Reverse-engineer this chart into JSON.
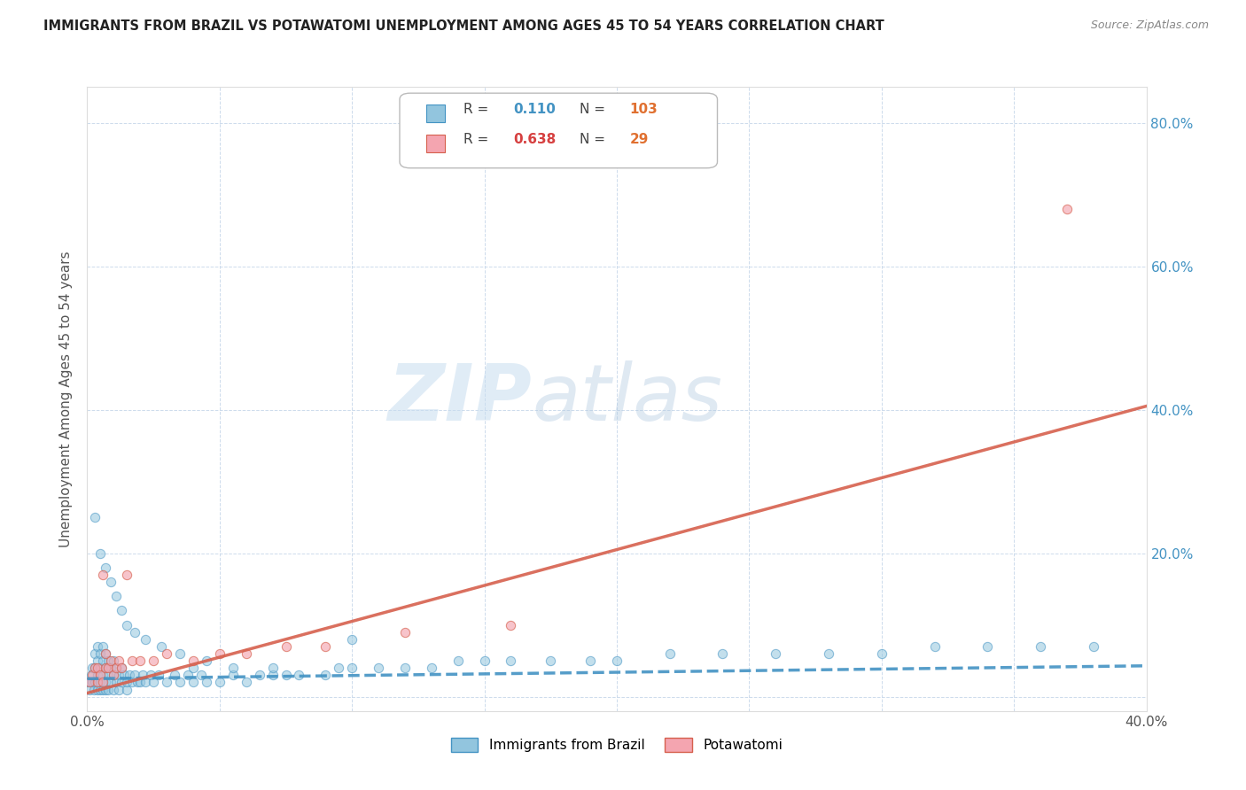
{
  "title": "IMMIGRANTS FROM BRAZIL VS POTAWATOMI UNEMPLOYMENT AMONG AGES 45 TO 54 YEARS CORRELATION CHART",
  "source": "Source: ZipAtlas.com",
  "ylabel": "Unemployment Among Ages 45 to 54 years",
  "xlim": [
    0.0,
    0.4
  ],
  "ylim": [
    -0.02,
    0.85
  ],
  "xticks": [
    0.0,
    0.05,
    0.1,
    0.15,
    0.2,
    0.25,
    0.3,
    0.35,
    0.4
  ],
  "yticks": [
    0.0,
    0.2,
    0.4,
    0.6,
    0.8
  ],
  "xtick_labels": [
    "0.0%",
    "",
    "",
    "",
    "",
    "",
    "",
    "",
    "40.0%"
  ],
  "ytick_labels_right": [
    "",
    "20.0%",
    "40.0%",
    "60.0%",
    "80.0%"
  ],
  "brazil_R": 0.11,
  "brazil_N": 103,
  "potawatomi_R": 0.638,
  "potawatomi_N": 29,
  "brazil_color": "#92c5de",
  "potawatomi_color": "#f4a5b0",
  "brazil_line_color": "#4393c3",
  "potawatomi_line_color": "#d6604d",
  "watermark_zip": "ZIP",
  "watermark_atlas": "atlas",
  "brazil_scatter_x": [
    0.0005,
    0.001,
    0.0015,
    0.002,
    0.002,
    0.0025,
    0.003,
    0.003,
    0.003,
    0.004,
    0.004,
    0.004,
    0.004,
    0.005,
    0.005,
    0.005,
    0.005,
    0.006,
    0.006,
    0.006,
    0.006,
    0.007,
    0.007,
    0.007,
    0.007,
    0.008,
    0.008,
    0.008,
    0.009,
    0.009,
    0.01,
    0.01,
    0.01,
    0.011,
    0.011,
    0.012,
    0.012,
    0.013,
    0.013,
    0.014,
    0.015,
    0.015,
    0.016,
    0.017,
    0.018,
    0.019,
    0.02,
    0.021,
    0.022,
    0.024,
    0.025,
    0.027,
    0.03,
    0.033,
    0.035,
    0.038,
    0.04,
    0.043,
    0.045,
    0.05,
    0.055,
    0.06,
    0.065,
    0.07,
    0.075,
    0.08,
    0.09,
    0.095,
    0.1,
    0.11,
    0.12,
    0.13,
    0.14,
    0.15,
    0.16,
    0.175,
    0.19,
    0.2,
    0.22,
    0.24,
    0.26,
    0.28,
    0.3,
    0.32,
    0.34,
    0.36,
    0.38,
    0.003,
    0.005,
    0.007,
    0.009,
    0.011,
    0.013,
    0.015,
    0.018,
    0.022,
    0.028,
    0.035,
    0.045,
    0.055,
    0.04,
    0.07,
    0.1
  ],
  "brazil_scatter_y": [
    0.02,
    0.01,
    0.03,
    0.02,
    0.04,
    0.01,
    0.02,
    0.04,
    0.06,
    0.01,
    0.03,
    0.05,
    0.07,
    0.01,
    0.02,
    0.04,
    0.06,
    0.01,
    0.03,
    0.05,
    0.07,
    0.01,
    0.02,
    0.04,
    0.06,
    0.01,
    0.03,
    0.05,
    0.02,
    0.04,
    0.01,
    0.03,
    0.05,
    0.02,
    0.04,
    0.01,
    0.03,
    0.02,
    0.04,
    0.03,
    0.01,
    0.02,
    0.03,
    0.02,
    0.03,
    0.02,
    0.02,
    0.03,
    0.02,
    0.03,
    0.02,
    0.03,
    0.02,
    0.03,
    0.02,
    0.03,
    0.02,
    0.03,
    0.02,
    0.02,
    0.03,
    0.02,
    0.03,
    0.03,
    0.03,
    0.03,
    0.03,
    0.04,
    0.04,
    0.04,
    0.04,
    0.04,
    0.05,
    0.05,
    0.05,
    0.05,
    0.05,
    0.05,
    0.06,
    0.06,
    0.06,
    0.06,
    0.06,
    0.07,
    0.07,
    0.07,
    0.07,
    0.25,
    0.2,
    0.18,
    0.16,
    0.14,
    0.12,
    0.1,
    0.09,
    0.08,
    0.07,
    0.06,
    0.05,
    0.04,
    0.04,
    0.04,
    0.08
  ],
  "potawatomi_scatter_x": [
    0.001,
    0.002,
    0.003,
    0.004,
    0.004,
    0.005,
    0.006,
    0.006,
    0.007,
    0.007,
    0.008,
    0.009,
    0.01,
    0.011,
    0.012,
    0.013,
    0.015,
    0.017,
    0.02,
    0.025,
    0.03,
    0.04,
    0.05,
    0.06,
    0.075,
    0.09,
    0.12,
    0.16,
    0.37
  ],
  "potawatomi_scatter_y": [
    0.02,
    0.03,
    0.04,
    0.02,
    0.04,
    0.03,
    0.02,
    0.17,
    0.04,
    0.06,
    0.04,
    0.05,
    0.03,
    0.04,
    0.05,
    0.04,
    0.17,
    0.05,
    0.05,
    0.05,
    0.06,
    0.05,
    0.06,
    0.06,
    0.07,
    0.07,
    0.09,
    0.1,
    0.68
  ],
  "brazil_line_intercept": 0.025,
  "brazil_line_slope": 0.045,
  "potawatomi_line_intercept": 0.005,
  "potawatomi_line_slope": 1.0
}
